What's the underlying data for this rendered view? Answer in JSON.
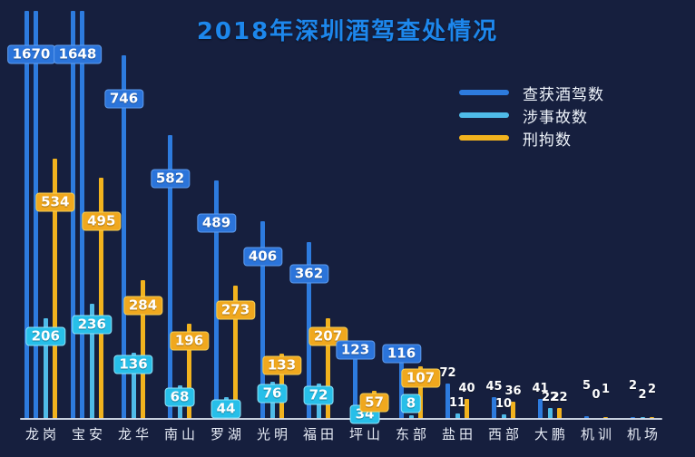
{
  "title": "2018年深圳酒驾查处情况",
  "chart_data": {
    "type": "bar",
    "title": "2018年深圳酒驾查处情况",
    "categories": [
      "龙岗",
      "宝安",
      "龙华",
      "南山",
      "罗湖",
      "光明",
      "福田",
      "坪山",
      "东部",
      "盐田",
      "西部",
      "大鹏",
      "机训",
      "机场"
    ],
    "series": [
      {
        "name": "查获酒驾数",
        "color": "#2d7bde",
        "badge_bg": "#2b74da",
        "badge_border": "#5f9cee",
        "values": [
          1670,
          1648,
          746,
          582,
          489,
          406,
          362,
          123,
          116,
          72,
          45,
          41,
          5,
          2
        ]
      },
      {
        "name": "涉事故数",
        "color": "#4fbbe8",
        "badge_bg": "#27bfe9",
        "badge_border": "#8fe2f8",
        "values": [
          206,
          236,
          136,
          68,
          44,
          76,
          72,
          34,
          8,
          11,
          10,
          22,
          0,
          2
        ]
      },
      {
        "name": "刑拘数",
        "color": "#f2b31e",
        "badge_bg": "#f0a81e",
        "badge_border": "#f6cf55",
        "values": [
          534,
          495,
          284,
          196,
          273,
          133,
          207,
          57,
          107,
          40,
          36,
          22,
          1,
          2
        ]
      }
    ],
    "xlabel": "",
    "ylabel": "",
    "ylim": [
      0,
      860
    ],
    "grid": false,
    "legend_position": "right-top",
    "background_color": "#161f3e",
    "axis_line_color": "#d6deec",
    "clipped_categories": [
      "龙岗",
      "宝安"
    ]
  }
}
